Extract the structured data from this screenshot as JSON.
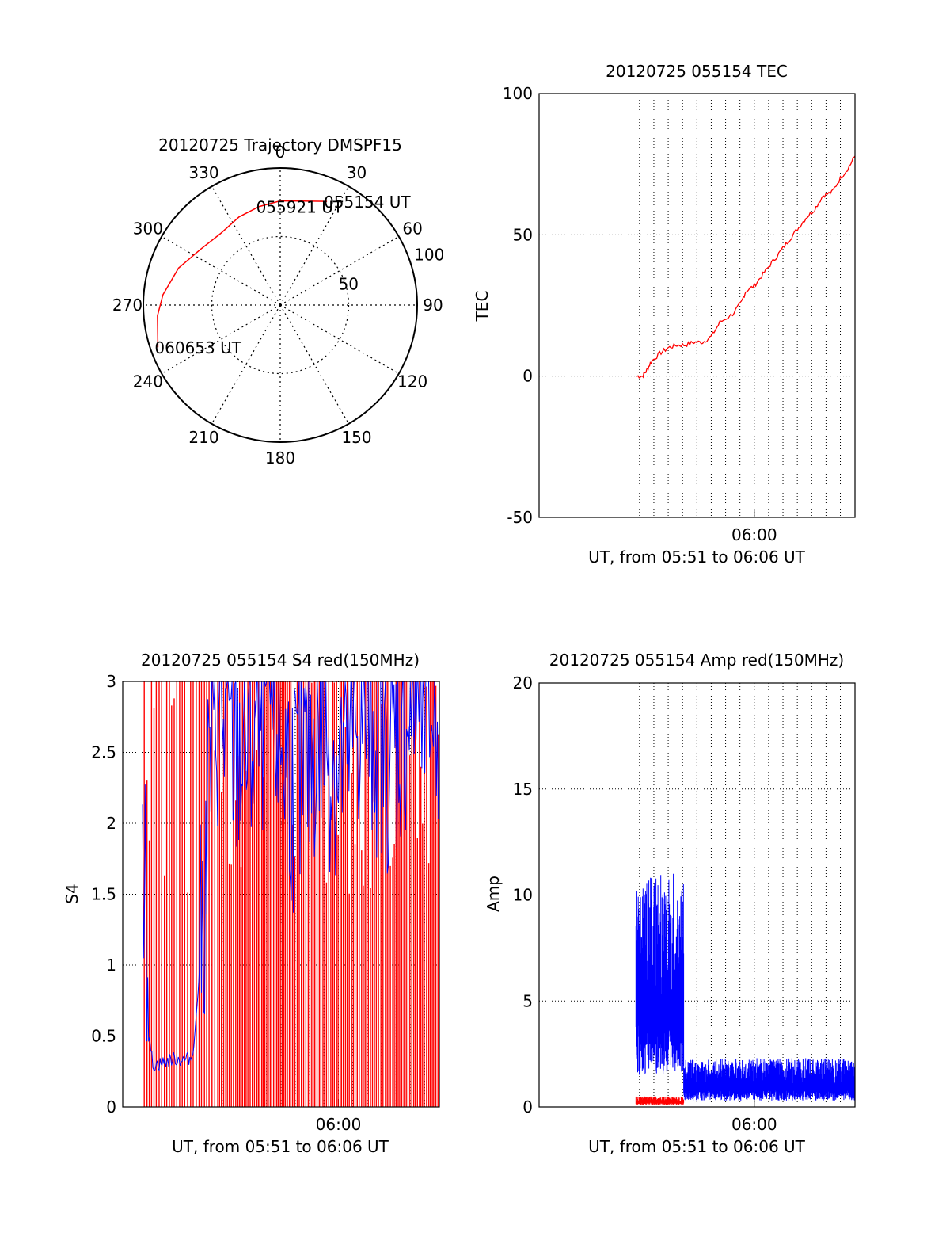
{
  "colors": {
    "red": "#ff0000",
    "blue": "#0000ff",
    "axis": "#000000"
  },
  "chart_data": [
    {
      "id": "trajectory",
      "type": "polar",
      "title": "20120725 Trajectory DMSPF15",
      "angle_labels": [
        "0",
        "30",
        "60",
        "90",
        "120",
        "150",
        "180",
        "210",
        "240",
        "270",
        "300",
        "330"
      ],
      "radial_labels": [
        "50",
        "100"
      ],
      "rlim": [
        0,
        100
      ],
      "grid": true,
      "series": [
        {
          "color": "red",
          "points": [
            [
              24.3,
              83
            ],
            [
              0,
              76
            ],
            [
              -12,
              73.5
            ],
            [
              -25,
              71
            ],
            [
              -40,
              68
            ],
            [
              -55,
              71
            ],
            [
              -70,
              79
            ],
            [
              -85,
              86
            ],
            [
              -95,
              90
            ],
            [
              -109,
              94.5
            ]
          ]
        }
      ],
      "annotations": [
        {
          "text": "055154 UT",
          "point": [
            24.3,
            83
          ]
        },
        {
          "text": "055921 UT",
          "point": [
            -12,
            73.5
          ]
        },
        {
          "text": "060653 UT",
          "point": [
            -109,
            94.5
          ]
        }
      ]
    },
    {
      "id": "tec",
      "type": "line",
      "title": "20120725 055154 TEC",
      "ylabel": "TEC",
      "xlabel": "UT, from 05:51 to 06:06 UT",
      "xlim": [
        5.75,
        6.117
      ],
      "ylim": [
        -50,
        100
      ],
      "yticks": [
        "-50",
        "0",
        "50",
        "100"
      ],
      "xtick": {
        "value": 6.0,
        "label": "06:00"
      },
      "grid": true,
      "series": [
        {
          "color": "red",
          "x": [
            5.8625,
            5.87,
            5.875,
            5.88,
            5.89,
            5.9,
            5.91,
            5.92,
            5.93,
            5.94,
            5.95,
            5.96,
            5.975,
            5.985,
            5.99,
            6.0,
            6.01,
            6.02,
            6.03,
            6.04,
            6.05,
            6.06,
            6.07,
            6.08,
            6.09,
            6.1,
            6.11,
            6.117
          ],
          "y": [
            0,
            0,
            2,
            5,
            8,
            10,
            11,
            11,
            12,
            12,
            14,
            19,
            22,
            26,
            30,
            32,
            36,
            40,
            44,
            48,
            52,
            56,
            59,
            64,
            65,
            70,
            74,
            78
          ]
        }
      ]
    },
    {
      "id": "s4",
      "type": "line",
      "title": "20120725 055154 S4 red(150MHz)",
      "ylabel": "S4",
      "xlabel": "UT, from 05:51 to 06:06 UT",
      "xlim": [
        5.75,
        6.117
      ],
      "ylim": [
        0,
        3
      ],
      "yticks": [
        "0",
        "0.5",
        "1",
        "1.5",
        "2",
        "2.5",
        "3"
      ],
      "xtick": {
        "value": 6.0,
        "label": "06:00"
      },
      "grid": true,
      "series": [
        {
          "name": "",
          "color": "blue",
          "x": [
            5.773,
            5.776,
            5.78,
            5.785,
            5.79,
            5.8,
            5.81,
            5.82,
            5.83,
            5.835,
            5.84,
            5.845,
            5.85,
            5.86,
            5.88,
            5.9,
            5.92,
            5.95,
            5.98,
            6.0,
            6.03,
            6.06,
            6.09,
            6.117
          ],
          "y": [
            1.3,
            2.2,
            0.5,
            0.3,
            0.3,
            0.32,
            0.34,
            0.33,
            0.35,
            0.6,
            1.1,
            1.5,
            2.4,
            2.8,
            2.5,
            2.6,
            2.9,
            2.2,
            2.7,
            2.4,
            2.8,
            2.5,
            2.9,
            2.8
          ]
        },
        {
          "name": "",
          "color": "red",
          "x": [
            5.775,
            6.117
          ],
          "y": [
            0,
            3
          ]
        }
      ]
    },
    {
      "id": "amp",
      "type": "line",
      "title": "20120725 055154 Amp red(150MHz)",
      "ylabel": "Amp",
      "xlabel": "UT, from 05:51 to 06:06 UT",
      "xlim": [
        5.75,
        6.117
      ],
      "ylim": [
        0,
        20
      ],
      "yticks": [
        "0",
        "5",
        "10",
        "15",
        "20"
      ],
      "xtick": {
        "value": 6.0,
        "label": "06:00"
      },
      "grid": true,
      "series": [
        {
          "name": "",
          "color": "blue",
          "segments": [
            {
              "x": [
                5.8625,
                5.918
              ],
              "ymin": 1.5,
              "ymax": 11
            },
            {
              "x": [
                5.918,
                6.117
              ],
              "ymin": 0.3,
              "ymax": 2.3
            }
          ]
        },
        {
          "name": "",
          "color": "red",
          "segments": [
            {
              "x": [
                5.8625,
                5.918
              ],
              "ymin": 0.1,
              "ymax": 0.5
            }
          ]
        }
      ]
    }
  ]
}
